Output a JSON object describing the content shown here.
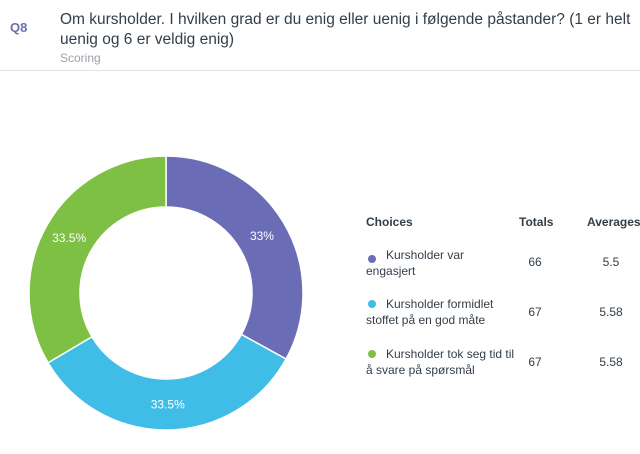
{
  "question": {
    "number": "Q8",
    "title": "Om kursholder. I hvilken grad er du enig eller uenig i følgende påstander? (1 er helt uenig og 6 er veldig enig)",
    "type": "Scoring"
  },
  "legend": {
    "headers": {
      "choices": "Choices",
      "totals": "Totals",
      "averages": "Averages"
    }
  },
  "chart_data": {
    "type": "pie",
    "donut": true,
    "slices": [
      {
        "label": "Kursholder var engasjert",
        "percent": 33,
        "percent_label": "33%",
        "total": "66",
        "average": "5.5",
        "color": "#6a6db5"
      },
      {
        "label": "Kursholder formidlet stoffet på en god måte",
        "percent": 33.5,
        "percent_label": "33.5%",
        "total": "67",
        "average": "5.58",
        "color": "#3fbde6"
      },
      {
        "label": "Kursholder tok seg tid til å svare på spørsmål",
        "percent": 33.5,
        "percent_label": "33.5%",
        "total": "67",
        "average": "5.58",
        "color": "#7dc043"
      }
    ]
  }
}
